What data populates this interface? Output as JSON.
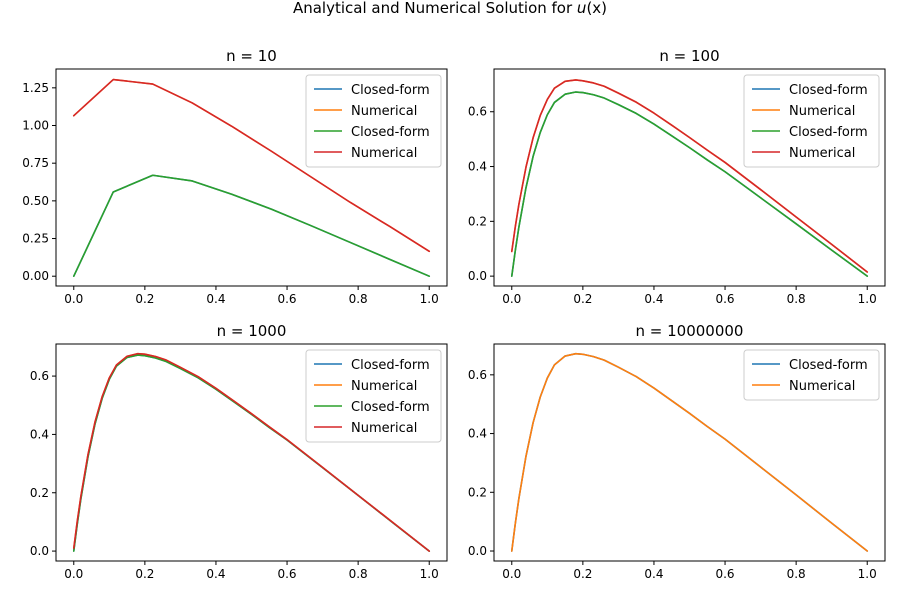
{
  "figure": {
    "title": "Analytical and Numerical Solution for u(x)",
    "title_prefix": "Analytical and Numerical Solution for ",
    "title_math": "u",
    "title_suffix": "(x)"
  },
  "colors": {
    "blue": "#1f77b4",
    "orange": "#ff7f0e",
    "green": "#2ca02c",
    "red": "#d62728"
  },
  "chart_data": [
    {
      "type": "line",
      "title": "n = 10",
      "xlim": [
        -0.05,
        1.05
      ],
      "ylim": [
        -0.065,
        1.375
      ],
      "xticks": [
        0.0,
        0.2,
        0.4,
        0.6,
        0.8,
        1.0
      ],
      "xtick_labels": [
        "0.0",
        "0.2",
        "0.4",
        "0.6",
        "0.8",
        "1.0"
      ],
      "yticks": [
        0.0,
        0.25,
        0.5,
        0.75,
        1.0,
        1.25
      ],
      "ytick_labels": [
        "0.00",
        "0.25",
        "0.50",
        "0.75",
        "1.00",
        "1.25"
      ],
      "legend_position": "upper right",
      "grid": false,
      "series": [
        {
          "name": "Closed-form",
          "color": "#1f77b4",
          "x": [
            0,
            0.1111,
            0.2222,
            0.3333,
            0.4444,
            0.5556,
            0.6667,
            0.7778,
            0.8889,
            1.0
          ],
          "y": [
            0.0,
            0.559,
            0.67,
            0.632,
            0.544,
            0.445,
            0.336,
            0.224,
            0.112,
            0.0
          ]
        },
        {
          "name": "Numerical",
          "color": "#ff7f0e",
          "x": [
            0,
            0.1111,
            0.2222,
            0.3333,
            0.4444,
            0.5556,
            0.6667,
            0.7778,
            0.8889,
            1.0
          ],
          "y": [
            1.065,
            1.305,
            1.275,
            1.15,
            0.995,
            0.83,
            0.66,
            0.49,
            0.33,
            0.165
          ]
        },
        {
          "name": "Closed-form",
          "color": "#2ca02c",
          "x": [
            0,
            0.1111,
            0.2222,
            0.3333,
            0.4444,
            0.5556,
            0.6667,
            0.7778,
            0.8889,
            1.0
          ],
          "y": [
            0.0,
            0.559,
            0.67,
            0.632,
            0.544,
            0.445,
            0.336,
            0.224,
            0.112,
            0.0
          ]
        },
        {
          "name": "Numerical",
          "color": "#d62728",
          "x": [
            0,
            0.1111,
            0.2222,
            0.3333,
            0.4444,
            0.5556,
            0.6667,
            0.7778,
            0.8889,
            1.0
          ],
          "y": [
            1.065,
            1.305,
            1.275,
            1.15,
            0.995,
            0.83,
            0.66,
            0.49,
            0.33,
            0.165
          ]
        }
      ]
    },
    {
      "type": "line",
      "title": "n = 100",
      "xlim": [
        -0.05,
        1.05
      ],
      "ylim": [
        -0.036,
        0.756
      ],
      "xticks": [
        0.0,
        0.2,
        0.4,
        0.6,
        0.8,
        1.0
      ],
      "xtick_labels": [
        "0.0",
        "0.2",
        "0.4",
        "0.6",
        "0.8",
        "1.0"
      ],
      "yticks": [
        0.0,
        0.2,
        0.4,
        0.6
      ],
      "ytick_labels": [
        "0.0",
        "0.2",
        "0.4",
        "0.6"
      ],
      "legend_position": "upper right",
      "grid": false,
      "series": [
        {
          "name": "Closed-form",
          "color": "#1f77b4",
          "x": [
            0,
            0.01,
            0.02,
            0.04,
            0.06,
            0.08,
            0.1,
            0.12,
            0.15,
            0.18,
            0.2,
            0.23,
            0.26,
            0.3,
            0.35,
            0.4,
            0.45,
            0.5,
            0.55,
            0.6,
            0.7,
            0.8,
            0.9,
            1.0
          ],
          "y": [
            0.0,
            0.094,
            0.179,
            0.323,
            0.437,
            0.524,
            0.589,
            0.634,
            0.664,
            0.672,
            0.67,
            0.662,
            0.65,
            0.626,
            0.594,
            0.555,
            0.512,
            0.469,
            0.424,
            0.381,
            0.286,
            0.191,
            0.095,
            0.0
          ]
        },
        {
          "name": "Numerical",
          "color": "#ff7f0e",
          "x": [
            0,
            0.01,
            0.02,
            0.04,
            0.06,
            0.08,
            0.1,
            0.12,
            0.15,
            0.18,
            0.2,
            0.23,
            0.26,
            0.3,
            0.35,
            0.4,
            0.45,
            0.5,
            0.55,
            0.6,
            0.7,
            0.8,
            0.9,
            1.0
          ],
          "y": [
            0.09,
            0.181,
            0.262,
            0.398,
            0.505,
            0.586,
            0.645,
            0.686,
            0.711,
            0.716,
            0.713,
            0.705,
            0.693,
            0.668,
            0.635,
            0.595,
            0.551,
            0.506,
            0.46,
            0.415,
            0.316,
            0.216,
            0.116,
            0.015
          ]
        },
        {
          "name": "Closed-form",
          "color": "#2ca02c",
          "x": [
            0,
            0.01,
            0.02,
            0.04,
            0.06,
            0.08,
            0.1,
            0.12,
            0.15,
            0.18,
            0.2,
            0.23,
            0.26,
            0.3,
            0.35,
            0.4,
            0.45,
            0.5,
            0.55,
            0.6,
            0.7,
            0.8,
            0.9,
            1.0
          ],
          "y": [
            0.0,
            0.094,
            0.179,
            0.323,
            0.437,
            0.524,
            0.589,
            0.634,
            0.664,
            0.672,
            0.67,
            0.662,
            0.65,
            0.626,
            0.594,
            0.555,
            0.512,
            0.469,
            0.424,
            0.381,
            0.286,
            0.191,
            0.095,
            0.0
          ]
        },
        {
          "name": "Numerical",
          "color": "#d62728",
          "x": [
            0,
            0.01,
            0.02,
            0.04,
            0.06,
            0.08,
            0.1,
            0.12,
            0.15,
            0.18,
            0.2,
            0.23,
            0.26,
            0.3,
            0.35,
            0.4,
            0.45,
            0.5,
            0.55,
            0.6,
            0.7,
            0.8,
            0.9,
            1.0
          ],
          "y": [
            0.09,
            0.181,
            0.262,
            0.398,
            0.505,
            0.586,
            0.645,
            0.686,
            0.711,
            0.716,
            0.713,
            0.705,
            0.693,
            0.668,
            0.635,
            0.595,
            0.551,
            0.506,
            0.46,
            0.415,
            0.316,
            0.216,
            0.116,
            0.015
          ]
        }
      ]
    },
    {
      "type": "line",
      "title": "n = 1000",
      "xlim": [
        -0.05,
        1.05
      ],
      "ylim": [
        -0.034,
        0.71
      ],
      "xticks": [
        0.0,
        0.2,
        0.4,
        0.6,
        0.8,
        1.0
      ],
      "xtick_labels": [
        "0.0",
        "0.2",
        "0.4",
        "0.6",
        "0.8",
        "1.0"
      ],
      "yticks": [
        0.0,
        0.2,
        0.4,
        0.6
      ],
      "ytick_labels": [
        "0.0",
        "0.2",
        "0.4",
        "0.6"
      ],
      "legend_position": "upper right",
      "grid": false,
      "series": [
        {
          "name": "Closed-form",
          "color": "#1f77b4",
          "x": [
            0,
            0.01,
            0.02,
            0.04,
            0.06,
            0.08,
            0.1,
            0.12,
            0.15,
            0.18,
            0.2,
            0.23,
            0.26,
            0.3,
            0.35,
            0.4,
            0.45,
            0.5,
            0.55,
            0.6,
            0.7,
            0.8,
            0.9,
            1.0
          ],
          "y": [
            0.0,
            0.094,
            0.179,
            0.323,
            0.437,
            0.524,
            0.589,
            0.634,
            0.664,
            0.672,
            0.67,
            0.662,
            0.65,
            0.626,
            0.594,
            0.555,
            0.512,
            0.469,
            0.424,
            0.381,
            0.286,
            0.191,
            0.095,
            0.0
          ]
        },
        {
          "name": "Numerical",
          "color": "#ff7f0e",
          "x": [
            0,
            0.01,
            0.02,
            0.04,
            0.06,
            0.08,
            0.1,
            0.12,
            0.15,
            0.18,
            0.2,
            0.23,
            0.26,
            0.3,
            0.35,
            0.4,
            0.45,
            0.5,
            0.55,
            0.6,
            0.7,
            0.8,
            0.9,
            1.0
          ],
          "y": [
            0.01,
            0.104,
            0.188,
            0.331,
            0.444,
            0.53,
            0.594,
            0.638,
            0.668,
            0.677,
            0.675,
            0.667,
            0.655,
            0.63,
            0.598,
            0.558,
            0.515,
            0.471,
            0.426,
            0.382,
            0.287,
            0.191,
            0.096,
            0.0
          ]
        },
        {
          "name": "Closed-form",
          "color": "#2ca02c",
          "x": [
            0,
            0.01,
            0.02,
            0.04,
            0.06,
            0.08,
            0.1,
            0.12,
            0.15,
            0.18,
            0.2,
            0.23,
            0.26,
            0.3,
            0.35,
            0.4,
            0.45,
            0.5,
            0.55,
            0.6,
            0.7,
            0.8,
            0.9,
            1.0
          ],
          "y": [
            0.0,
            0.094,
            0.179,
            0.323,
            0.437,
            0.524,
            0.589,
            0.634,
            0.664,
            0.672,
            0.67,
            0.662,
            0.65,
            0.626,
            0.594,
            0.555,
            0.512,
            0.469,
            0.424,
            0.381,
            0.286,
            0.191,
            0.095,
            0.0
          ]
        },
        {
          "name": "Numerical",
          "color": "#d62728",
          "x": [
            0,
            0.01,
            0.02,
            0.04,
            0.06,
            0.08,
            0.1,
            0.12,
            0.15,
            0.18,
            0.2,
            0.23,
            0.26,
            0.3,
            0.35,
            0.4,
            0.45,
            0.5,
            0.55,
            0.6,
            0.7,
            0.8,
            0.9,
            1.0
          ],
          "y": [
            0.01,
            0.104,
            0.188,
            0.331,
            0.444,
            0.53,
            0.594,
            0.638,
            0.668,
            0.677,
            0.675,
            0.667,
            0.655,
            0.63,
            0.598,
            0.558,
            0.515,
            0.471,
            0.426,
            0.382,
            0.287,
            0.191,
            0.096,
            0.0
          ]
        }
      ]
    },
    {
      "type": "line",
      "title": "n = 10000000",
      "xlim": [
        -0.05,
        1.05
      ],
      "ylim": [
        -0.034,
        0.705
      ],
      "xticks": [
        0.0,
        0.2,
        0.4,
        0.6,
        0.8,
        1.0
      ],
      "xtick_labels": [
        "0.0",
        "0.2",
        "0.4",
        "0.6",
        "0.8",
        "1.0"
      ],
      "yticks": [
        0.0,
        0.2,
        0.4,
        0.6
      ],
      "ytick_labels": [
        "0.0",
        "0.2",
        "0.4",
        "0.6"
      ],
      "legend_position": "upper right",
      "grid": false,
      "series": [
        {
          "name": "Closed-form",
          "color": "#1f77b4",
          "x": [
            0,
            0.01,
            0.02,
            0.04,
            0.06,
            0.08,
            0.1,
            0.12,
            0.15,
            0.18,
            0.2,
            0.23,
            0.26,
            0.3,
            0.35,
            0.4,
            0.45,
            0.5,
            0.55,
            0.6,
            0.7,
            0.8,
            0.9,
            1.0
          ],
          "y": [
            0.0,
            0.094,
            0.179,
            0.323,
            0.437,
            0.524,
            0.589,
            0.634,
            0.664,
            0.672,
            0.67,
            0.662,
            0.65,
            0.626,
            0.594,
            0.555,
            0.512,
            0.469,
            0.424,
            0.381,
            0.286,
            0.191,
            0.095,
            0.0
          ]
        },
        {
          "name": "Numerical",
          "color": "#ff7f0e",
          "x": [
            0,
            0.01,
            0.02,
            0.04,
            0.06,
            0.08,
            0.1,
            0.12,
            0.15,
            0.18,
            0.2,
            0.23,
            0.26,
            0.3,
            0.35,
            0.4,
            0.45,
            0.5,
            0.55,
            0.6,
            0.7,
            0.8,
            0.9,
            1.0
          ],
          "y": [
            0.0,
            0.094,
            0.179,
            0.323,
            0.437,
            0.524,
            0.589,
            0.634,
            0.664,
            0.672,
            0.67,
            0.662,
            0.65,
            0.626,
            0.594,
            0.555,
            0.512,
            0.469,
            0.424,
            0.381,
            0.286,
            0.191,
            0.095,
            0.0
          ]
        }
      ]
    }
  ]
}
